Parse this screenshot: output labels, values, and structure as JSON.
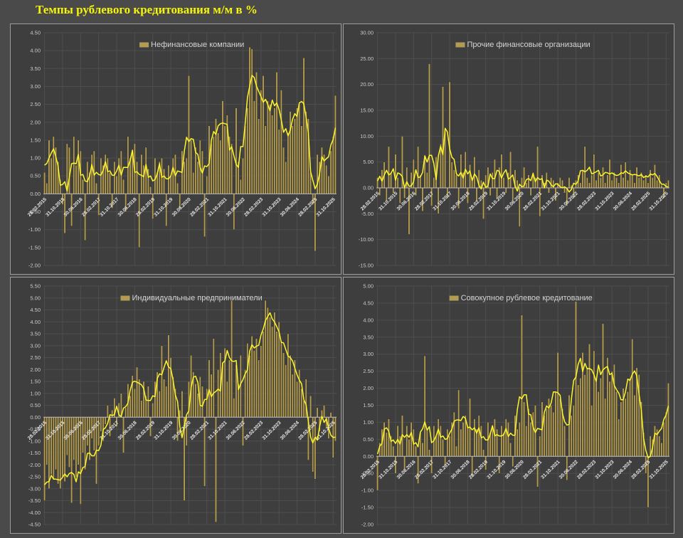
{
  "page": {
    "title": "Темпы рублевого кредитования м/м в %"
  },
  "colors": {
    "background": "#4a4a4a",
    "panel_background": "#3e3e3e",
    "panel_border": "#9c9c9c",
    "title_yellow": "#f5f50a",
    "bar": "#b29b53",
    "bar_edge": "#2e2c20",
    "line": "#fdf62b",
    "grid": "#4e4e4e",
    "zero_line": "#bdbdbd",
    "y_label": "#c9c9c9",
    "x_label": "#e8e8e8",
    "legend_text": "#d4d4d4"
  },
  "axis": {
    "x_tick_labels": [
      "28.02.2015",
      "31.10.2015",
      "30.06.2016",
      "28.02.2017",
      "31.10.2017",
      "30.06.2018",
      "28.02.2019",
      "31.10.2019",
      "30.06.2020",
      "28.02.2021",
      "31.10.2021",
      "30.06.2022",
      "28.02.2023",
      "31.10.2023",
      "30.06.2024",
      "28.02.2025",
      "31.10.2025"
    ],
    "x_tick_interval_months": 8
  },
  "chart_data": [
    {
      "type": "bar",
      "legend": "Нефинансовые компании",
      "ylabel": "",
      "xlabel": "",
      "ylim": [
        -2.0,
        4.5
      ],
      "ystep": 0.5,
      "line_overlay": "5-month moving average",
      "values": [
        0.6,
        0.3,
        1.5,
        1.0,
        1.6,
        1.3,
        0.9,
        0.4,
        -0.3,
        -1.1,
        1.4,
        1.3,
        -0.9,
        1.6,
        0.8,
        1.5,
        1.2,
        0.4,
        -1.3,
        0.9,
        0.6,
        1.1,
        1.2,
        0.3,
        -0.6,
        1.0,
        0.8,
        1.1,
        1.0,
        0.6,
        -0.4,
        0.9,
        0.5,
        1.0,
        1.2,
        0.4,
        -0.5,
        1.6,
        1.0,
        1.2,
        1.4,
        0.9,
        -1.5,
        1.1,
        0.8,
        1.3,
        0.7,
        0.2,
        -0.7,
        1.0,
        0.6,
        0.9,
        1.0,
        0.7,
        -0.9,
        0.8,
        0.5,
        1.0,
        1.1,
        0.3,
        -0.4,
        1.2,
        0.9,
        1.0,
        3.3,
        1.5,
        0.6,
        1.3,
        0.9,
        1.5,
        1.2,
        -1.2,
        0.5,
        1.9,
        1.4,
        1.6,
        2.1,
        1.7,
        1.5,
        2.6,
        1.9,
        2.2,
        1.6,
        1.4,
        -1.0,
        2.4,
        0.9,
        0.4,
        1.0,
        1.9,
        2.4,
        4.1,
        4.05,
        2.6,
        3.4,
        2.1,
        2.9,
        3.3,
        1.9,
        2.6,
        2.5,
        2.2,
        2.4,
        3.4,
        1.8,
        2.9,
        1.3,
        0.9,
        1.7,
        2.3,
        1.9,
        2.1,
        2.4,
        2.5,
        1.9,
        3.8,
        2.3,
        2.1,
        0.6,
        -0.3,
        -1.6,
        1.1,
        0.9,
        1.3,
        1.1,
        0.8,
        0.5,
        1.2,
        1.6,
        2.75
      ]
    },
    {
      "type": "bar",
      "legend": "Прочие финансовые организации",
      "ylabel": "",
      "xlabel": "",
      "ylim": [
        -15.0,
        30.0
      ],
      "ystep": 5.0,
      "line_overlay": "5-month moving average",
      "values": [
        2.0,
        -1.5,
        3.5,
        5.0,
        -2.5,
        8.0,
        3.0,
        -1.0,
        6.5,
        2.0,
        -3.0,
        10.0,
        -2.0,
        4.0,
        -9.0,
        3.0,
        5.5,
        -1.5,
        8.0,
        2.5,
        -4.5,
        6.0,
        3.0,
        24.0,
        -3.5,
        2.0,
        6.0,
        -5.0,
        8.5,
        19.6,
        11.0,
        -2.0,
        20.5,
        5.0,
        3.5,
        2.5,
        -4.0,
        6.5,
        3.0,
        7.0,
        -3.0,
        4.5,
        2.0,
        6.0,
        -2.5,
        3.5,
        1.5,
        -6.0,
        2.5,
        4.0,
        -1.5,
        3.0,
        5.5,
        -2.0,
        4.0,
        6.5,
        2.0,
        -1.0,
        3.0,
        7.0,
        -2.5,
        3.5,
        1.5,
        -7.5,
        2.0,
        4.0,
        1.0,
        2.5,
        -1.5,
        3.0,
        2.0,
        8.0,
        -5.5,
        2.5,
        1.0,
        3.0,
        -1.0,
        2.0,
        1.5,
        -2.5,
        1.0,
        2.0,
        1.5,
        -1.0,
        -3.5,
        2.0,
        0.5,
        -2.0,
        1.5,
        2.5,
        1.0,
        3.5,
        8.0,
        2.0,
        1.0,
        2.5,
        6.5,
        1.5,
        3.0,
        2.0,
        4.0,
        1.0,
        2.5,
        5.5,
        1.5,
        3.0,
        2.0,
        1.0,
        4.5,
        2.0,
        5.0,
        1.5,
        3.5,
        2.5,
        1.0,
        4.0,
        2.0,
        3.0,
        1.5,
        2.5,
        1.0,
        3.5,
        2.0,
        4.5,
        1.5,
        2.5,
        0.5,
        -2.0,
        1.0,
        1.5
      ]
    },
    {
      "type": "bar",
      "legend": "Индивидуальные предприниматели",
      "ylabel": "",
      "xlabel": "",
      "ylim": [
        -4.5,
        5.5
      ],
      "ystep": 0.5,
      "line_overlay": "5-month moving average",
      "values": [
        -3.5,
        -2.0,
        -3.0,
        -2.4,
        -2.6,
        -2.2,
        -2.8,
        -3.0,
        -2.5,
        -2.7,
        -1.6,
        -2.1,
        -3.6,
        -1.8,
        -2.5,
        -2.0,
        -3.65,
        -1.5,
        -2.2,
        -1.2,
        -1.8,
        -0.9,
        -1.4,
        -2.8,
        -1.2,
        -0.6,
        -1.0,
        -0.3,
        0.5,
        -0.8,
        0.3,
        0.8,
        -0.4,
        0.6,
        1.0,
        -1.5,
        0.4,
        1.4,
        0.9,
        1.75,
        1.2,
        2.1,
        1.6,
        0.7,
        1.5,
        0.9,
        1.3,
        -0.8,
        0.6,
        1.5,
        1.9,
        1.1,
        3.0,
        1.6,
        1.3,
        3.45,
        2.5,
        1.7,
        1.2,
        -1.0,
        0.3,
        1.1,
        -3.5,
        -1.2,
        1.5,
        2.6,
        1.9,
        1.4,
        1.0,
        1.7,
        1.3,
        -2.9,
        1.2,
        2.4,
        1.8,
        3.3,
        -4.4,
        2.0,
        2.7,
        2.3,
        2.9,
        1.5,
        2.4,
        4.9,
        0.8,
        2.2,
        1.4,
        2.6,
        -1.2,
        2.0,
        3.1,
        2.6,
        3.4,
        2.8,
        3.3,
        2.4,
        3.0,
        3.6,
        4.9,
        4.6,
        4.2,
        3.8,
        4.4,
        3.6,
        4.0,
        3.2,
        2.7,
        2.2,
        3.5,
        2.6,
        1.8,
        2.4,
        1.5,
        2.0,
        1.2,
        0.7,
        1.6,
        -1.8,
        0.9,
        -2.3,
        -2.6,
        0.4,
        -0.6,
        0.3,
        0.5,
        -0.4,
        -0.9,
        0.2,
        -1.7,
        -1.0
      ]
    },
    {
      "type": "bar",
      "legend": "Совокупное рублевое кредитование",
      "ylabel": "",
      "xlabel": "",
      "ylim": [
        -2.0,
        5.0
      ],
      "ystep": 0.5,
      "line_overlay": "5-month moving average",
      "values": [
        -1.0,
        0.4,
        0.8,
        1.0,
        0.7,
        1.1,
        0.6,
        0.3,
        -0.5,
        0.9,
        0.6,
        1.2,
        -0.4,
        0.9,
        0.5,
        1.0,
        0.8,
        0.3,
        -0.8,
        0.7,
        0.4,
        2.95,
        0.8,
        0.2,
        -0.5,
        0.9,
        0.6,
        1.1,
        0.9,
        0.5,
        -0.3,
        0.8,
        0.6,
        1.0,
        1.3,
        0.3,
        1.95,
        0.8,
        1.0,
        1.2,
        0.9,
        1.7,
        -0.6,
        1.1,
        0.8,
        1.2,
        0.9,
        0.2,
        -0.4,
        1.0,
        0.7,
        0.9,
        1.1,
        0.8,
        -0.5,
        0.9,
        0.7,
        1.1,
        1.0,
        0.4,
        -0.3,
        1.2,
        0.8,
        1.0,
        4.15,
        1.6,
        0.9,
        1.4,
        1.0,
        1.3,
        1.5,
        -0.9,
        0.6,
        1.6,
        1.2,
        1.4,
        1.7,
        1.5,
        1.3,
        1.9,
        3.05,
        1.7,
        1.4,
        0.9,
        -0.7,
        1.8,
        1.2,
        1.5,
        4.55,
        2.1,
        2.3,
        3.05,
        2.4,
        2.6,
        3.3,
        1.5,
        3.1,
        2.2,
        1.9,
        2.3,
        3.9,
        1.7,
        2.9,
        2.2,
        2.5,
        2.7,
        1.9,
        1.1,
        1.6,
        2.0,
        1.7,
        1.9,
        2.3,
        3.45,
        1.8,
        2.6,
        2.4,
        1.6,
        0.7,
        -0.5,
        -1.5,
        0.6,
        0.5,
        0.9,
        0.8,
        0.6,
        0.4,
        1.0,
        1.3,
        2.15
      ]
    }
  ]
}
